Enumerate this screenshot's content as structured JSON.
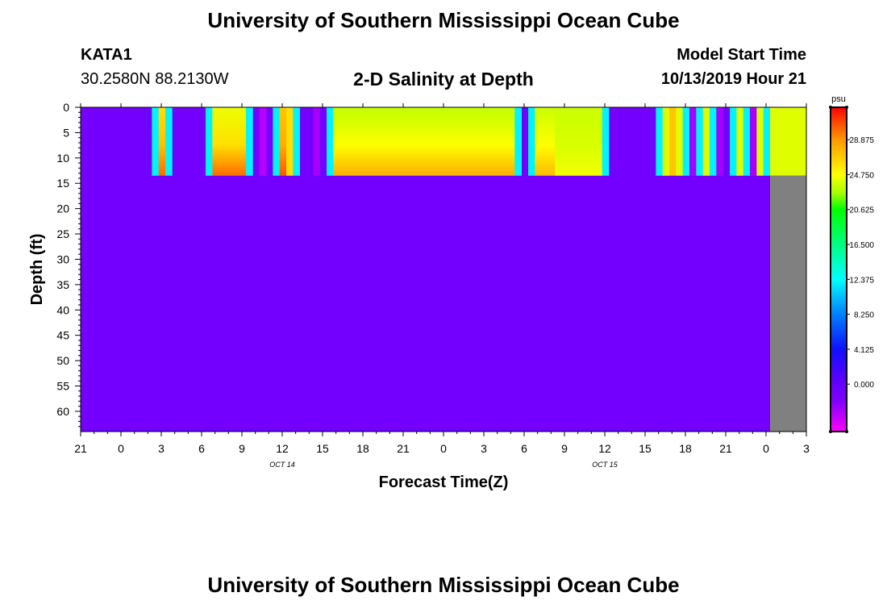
{
  "header": {
    "title": "University of Southern Mississippi Ocean Cube",
    "station_id": "KATA1",
    "station_coords": "30.2580N 88.2130W",
    "plot_title": "2-D Salinity at Depth",
    "model_start_label": "Model Start Time",
    "model_start_value": "10/13/2019 Hour 21"
  },
  "footer": {
    "title": "University of Southern Mississippi Ocean Cube"
  },
  "chart_data": {
    "type": "heatmap",
    "xlabel": "Forecast Time(Z)",
    "ylabel": "Depth (ft)",
    "x_tick_labels": [
      "21",
      "0",
      "3",
      "6",
      "9",
      "12",
      "15",
      "18",
      "21",
      "0",
      "3",
      "6",
      "9",
      "12",
      "15",
      "18",
      "21",
      "0",
      "3"
    ],
    "x_range_hours": [
      0,
      54
    ],
    "date_labels": [
      {
        "text": "OCT 14",
        "hour": 15
      },
      {
        "text": "OCT 15",
        "hour": 39
      }
    ],
    "y_tick_labels": [
      "0",
      "5",
      "10",
      "15",
      "20",
      "25",
      "30",
      "35",
      "40",
      "45",
      "50",
      "55",
      "60"
    ],
    "ylim_ft": [
      0,
      64
    ],
    "mixed_layer_bottom_ft": 13.5,
    "background_salinity": -1.0,
    "no_data_after_hour": 51.3,
    "no_data_color": "#808080",
    "columns": [
      {
        "t0": 5.3,
        "t1": 5.8,
        "value": 12.0
      },
      {
        "t0": 5.8,
        "t1": 6.3,
        "top": 26.0,
        "bottom": 30.0
      },
      {
        "t0": 6.3,
        "t1": 6.8,
        "value": 12.0
      },
      {
        "t0": 9.3,
        "t1": 9.8,
        "value": 12.0
      },
      {
        "t0": 9.8,
        "t1": 12.3,
        "top": 24.3,
        "bottom": 30.0
      },
      {
        "t0": 12.3,
        "t1": 12.8,
        "value": 12.0
      },
      {
        "t0": 13.3,
        "t1": 13.8,
        "value": -3.5
      },
      {
        "t0": 14.3,
        "t1": 14.8,
        "value": 12.0
      },
      {
        "t0": 14.8,
        "t1": 15.3,
        "top": 27.0,
        "bottom": 30.5
      },
      {
        "t0": 15.3,
        "t1": 15.8,
        "value": 26.0
      },
      {
        "t0": 15.8,
        "t1": 16.3,
        "value": 12.0
      },
      {
        "t0": 17.3,
        "t1": 17.8,
        "value": -3.0
      },
      {
        "t0": 18.3,
        "t1": 18.8,
        "value": 12.0
      },
      {
        "t0": 18.8,
        "t1": 32.3,
        "top": 23.3,
        "bottom": 28.0
      },
      {
        "t0": 32.3,
        "t1": 32.8,
        "value": 12.0
      },
      {
        "t0": 33.3,
        "t1": 33.8,
        "value": 12.0
      },
      {
        "t0": 33.8,
        "t1": 35.3,
        "top": 23.5,
        "bottom": 27.5
      },
      {
        "t0": 35.3,
        "t1": 38.8,
        "top": 23.5,
        "bottom": 24.5
      },
      {
        "t0": 38.8,
        "t1": 39.3,
        "value": 12.0
      },
      {
        "t0": 42.8,
        "t1": 43.3,
        "value": 12.0
      },
      {
        "t0": 43.3,
        "t1": 43.8,
        "value": 24.0
      },
      {
        "t0": 43.8,
        "t1": 44.3,
        "value": 27.0
      },
      {
        "t0": 44.3,
        "t1": 44.8,
        "value": 24.0
      },
      {
        "t0": 44.8,
        "t1": 45.3,
        "value": 12.0
      },
      {
        "t0": 45.3,
        "t1": 45.8,
        "value": -3.0
      },
      {
        "t0": 45.8,
        "t1": 46.3,
        "value": 12.0
      },
      {
        "t0": 46.3,
        "t1": 46.8,
        "value": 24.0
      },
      {
        "t0": 46.8,
        "t1": 47.3,
        "value": 12.0
      },
      {
        "t0": 47.3,
        "t1": 47.8,
        "value": -3.0
      },
      {
        "t0": 48.3,
        "t1": 48.8,
        "value": 12.0
      },
      {
        "t0": 48.8,
        "t1": 49.3,
        "value": 24.0
      },
      {
        "t0": 49.3,
        "t1": 49.8,
        "value": 12.0
      },
      {
        "t0": 49.8,
        "t1": 50.3,
        "value": -3.0
      },
      {
        "t0": 50.3,
        "t1": 50.8,
        "value": 24.0
      },
      {
        "t0": 50.8,
        "t1": 51.3,
        "value": 12.0
      },
      {
        "t0": 51.3,
        "t1": 54.0,
        "value": 24.0
      }
    ],
    "colorbar": {
      "unit": "psu",
      "range": [
        -5.6,
        32.7
      ],
      "tick_labels": [
        "28.875",
        "24.750",
        "20.625",
        "16.500",
        "12.375",
        "8.250",
        "4.125",
        "0.000"
      ],
      "tick_values": [
        28.875,
        24.75,
        20.625,
        16.5,
        12.375,
        8.25,
        4.125,
        0.0
      ],
      "color_stops": [
        {
          "value": -5.6,
          "color": "#ff00ff"
        },
        {
          "value": -2.0,
          "color": "#8000ff"
        },
        {
          "value": 0.0,
          "color": "#6600ff"
        },
        {
          "value": 4.125,
          "color": "#1010ff"
        },
        {
          "value": 8.25,
          "color": "#0080ff"
        },
        {
          "value": 12.375,
          "color": "#00ffff"
        },
        {
          "value": 16.5,
          "color": "#00ff80"
        },
        {
          "value": 20.625,
          "color": "#00ff00"
        },
        {
          "value": 22.5,
          "color": "#a0ff00"
        },
        {
          "value": 24.75,
          "color": "#ffff00"
        },
        {
          "value": 28.875,
          "color": "#ff9900"
        },
        {
          "value": 32.7,
          "color": "#ff0000"
        }
      ]
    }
  }
}
